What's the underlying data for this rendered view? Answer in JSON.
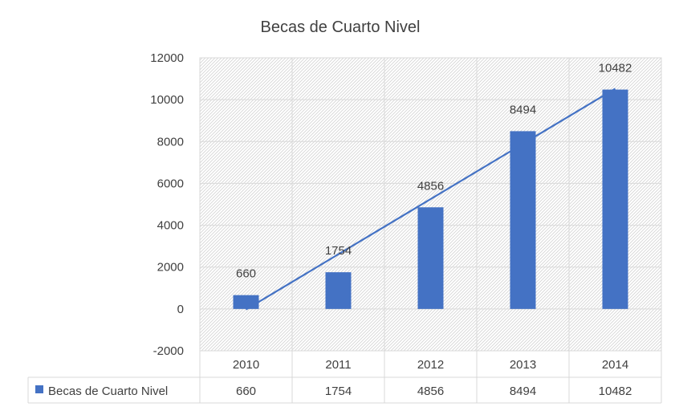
{
  "chart_data": {
    "type": "bar",
    "title": "Becas de Cuarto Nivel",
    "categories": [
      "2010",
      "2011",
      "2012",
      "2013",
      "2014"
    ],
    "series": [
      {
        "name": "Becas de Cuarto Nivel",
        "values": [
          660,
          1754,
          4856,
          8494,
          10482
        ],
        "color": "#4472c4"
      }
    ],
    "trendline": {
      "type": "linear",
      "color": "#4472c4"
    },
    "ylim": [
      -2000,
      12000
    ],
    "yticks": [
      -2000,
      0,
      2000,
      4000,
      6000,
      8000,
      10000,
      12000
    ],
    "grid": true,
    "data_table": true,
    "legend": "in data table"
  }
}
